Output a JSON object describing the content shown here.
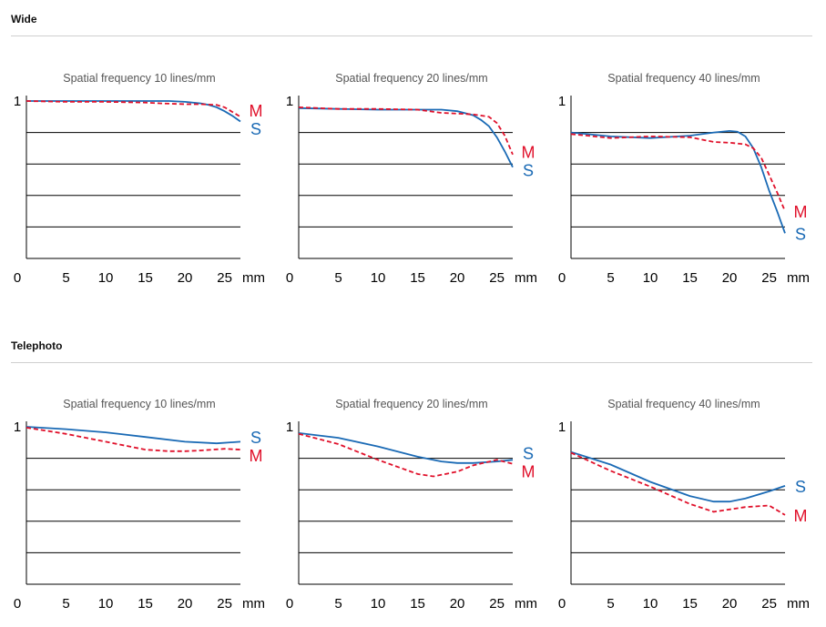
{
  "sections": [
    {
      "title": "Wide"
    },
    {
      "title": "Telephoto"
    }
  ],
  "colors": {
    "s_series": "#1a6ab5",
    "m_series": "#e0102a",
    "grid": "#000000",
    "subtitle": "#555555"
  },
  "chart_data": [
    {
      "type": "line",
      "section": "Wide",
      "title": "Spatial frequency 10 lines/mm",
      "xlabel": "mm",
      "xticks": [
        0,
        5,
        10,
        15,
        20,
        25
      ],
      "xlim": [
        0,
        27
      ],
      "ylabel": "",
      "yticks": [
        "1"
      ],
      "ylim": [
        0,
        1
      ],
      "grid_y": [
        0.2,
        0.4,
        0.6,
        0.8
      ],
      "series": [
        {
          "name": "S",
          "style": "solid",
          "x": [
            0,
            5,
            10,
            15,
            18,
            20,
            22,
            23,
            24,
            25,
            26,
            27
          ],
          "y": [
            1.0,
            1.0,
            1.0,
            1.0,
            1.0,
            0.995,
            0.985,
            0.975,
            0.96,
            0.935,
            0.905,
            0.87
          ]
        },
        {
          "name": "M",
          "style": "dashed",
          "x": [
            0,
            5,
            10,
            15,
            17,
            20,
            22,
            24,
            25,
            26,
            27
          ],
          "y": [
            1.0,
            0.995,
            0.995,
            0.99,
            0.985,
            0.98,
            0.98,
            0.975,
            0.96,
            0.93,
            0.9
          ]
        }
      ]
    },
    {
      "type": "line",
      "section": "Wide",
      "title": "Spatial frequency 20 lines/mm",
      "xlabel": "mm",
      "xticks": [
        0,
        5,
        10,
        15,
        20,
        25
      ],
      "xlim": [
        0,
        27
      ],
      "ylabel": "",
      "yticks": [
        "1"
      ],
      "ylim": [
        0,
        1
      ],
      "grid_y": [
        0.2,
        0.4,
        0.6,
        0.8
      ],
      "series": [
        {
          "name": "S",
          "style": "solid",
          "x": [
            0,
            5,
            10,
            15,
            18,
            20,
            22,
            23,
            24,
            25,
            26,
            27
          ],
          "y": [
            0.955,
            0.95,
            0.945,
            0.945,
            0.945,
            0.935,
            0.91,
            0.88,
            0.84,
            0.77,
            0.68,
            0.58
          ]
        },
        {
          "name": "M",
          "style": "dashed",
          "x": [
            0,
            5,
            10,
            15,
            18,
            20,
            22,
            24,
            25,
            26,
            27
          ],
          "y": [
            0.96,
            0.95,
            0.95,
            0.945,
            0.925,
            0.92,
            0.915,
            0.9,
            0.86,
            0.78,
            0.66
          ]
        }
      ]
    },
    {
      "type": "line",
      "section": "Wide",
      "title": "Spatial frequency 40 lines/mm",
      "xlabel": "mm",
      "xticks": [
        0,
        5,
        10,
        15,
        20,
        25
      ],
      "xlim": [
        0,
        27
      ],
      "ylabel": "",
      "yticks": [
        "1"
      ],
      "ylim": [
        0,
        1
      ],
      "grid_y": [
        0.2,
        0.4,
        0.6,
        0.8
      ],
      "series": [
        {
          "name": "S",
          "style": "solid",
          "x": [
            0,
            5,
            10,
            15,
            18,
            20,
            21,
            22,
            23,
            24,
            25,
            26,
            27
          ],
          "y": [
            0.8,
            0.775,
            0.765,
            0.78,
            0.8,
            0.81,
            0.805,
            0.775,
            0.7,
            0.58,
            0.43,
            0.3,
            0.16
          ]
        },
        {
          "name": "M",
          "style": "dashed",
          "x": [
            0,
            5,
            10,
            15,
            18,
            20,
            22,
            23,
            24,
            25,
            26,
            27
          ],
          "y": [
            0.79,
            0.765,
            0.775,
            0.77,
            0.74,
            0.735,
            0.725,
            0.7,
            0.64,
            0.53,
            0.42,
            0.3
          ]
        }
      ]
    },
    {
      "type": "line",
      "section": "Telephoto",
      "title": "Spatial frequency 10 lines/mm",
      "xlabel": "mm",
      "xticks": [
        0,
        5,
        10,
        15,
        20,
        25
      ],
      "xlim": [
        0,
        27
      ],
      "ylabel": "",
      "yticks": [
        "1"
      ],
      "ylim": [
        0,
        1
      ],
      "grid_y": [
        0.2,
        0.4,
        0.6,
        0.8
      ],
      "series": [
        {
          "name": "S",
          "style": "solid",
          "x": [
            0,
            5,
            10,
            15,
            20,
            24,
            27
          ],
          "y": [
            1.0,
            0.985,
            0.965,
            0.935,
            0.905,
            0.895,
            0.905
          ]
        },
        {
          "name": "M",
          "style": "dashed",
          "x": [
            0,
            5,
            10,
            15,
            18,
            20,
            22,
            25,
            27
          ],
          "y": [
            0.995,
            0.955,
            0.905,
            0.855,
            0.845,
            0.845,
            0.85,
            0.86,
            0.855
          ]
        }
      ]
    },
    {
      "type": "line",
      "section": "Telephoto",
      "title": "Spatial frequency 20 lines/mm",
      "xlabel": "mm",
      "xticks": [
        0,
        5,
        10,
        15,
        20,
        25
      ],
      "xlim": [
        0,
        27
      ],
      "ylabel": "",
      "yticks": [
        "1"
      ],
      "ylim": [
        0,
        1
      ],
      "grid_y": [
        0.2,
        0.4,
        0.6,
        0.8
      ],
      "series": [
        {
          "name": "S",
          "style": "solid",
          "x": [
            0,
            5,
            10,
            15,
            18,
            20,
            22,
            25,
            27
          ],
          "y": [
            0.96,
            0.93,
            0.875,
            0.81,
            0.78,
            0.77,
            0.77,
            0.78,
            0.79
          ]
        },
        {
          "name": "M",
          "style": "dashed",
          "x": [
            0,
            5,
            10,
            15,
            17,
            20,
            22,
            25,
            27
          ],
          "y": [
            0.955,
            0.89,
            0.79,
            0.7,
            0.685,
            0.715,
            0.755,
            0.79,
            0.765
          ]
        }
      ]
    },
    {
      "type": "line",
      "section": "Telephoto",
      "title": "Spatial frequency 40 lines/mm",
      "xlabel": "mm",
      "xticks": [
        0,
        5,
        10,
        15,
        20,
        25
      ],
      "xlim": [
        0,
        27
      ],
      "ylabel": "",
      "yticks": [
        "1"
      ],
      "ylim": [
        0,
        1
      ],
      "grid_y": [
        0.2,
        0.4,
        0.6,
        0.8
      ],
      "series": [
        {
          "name": "S",
          "style": "solid",
          "x": [
            0,
            5,
            10,
            15,
            18,
            20,
            22,
            25,
            27
          ],
          "y": [
            0.84,
            0.76,
            0.65,
            0.56,
            0.525,
            0.525,
            0.545,
            0.59,
            0.625
          ]
        },
        {
          "name": "M",
          "style": "dashed",
          "x": [
            0,
            5,
            10,
            15,
            18,
            20,
            22,
            25,
            27
          ],
          "y": [
            0.835,
            0.72,
            0.62,
            0.51,
            0.46,
            0.475,
            0.49,
            0.5,
            0.44
          ]
        }
      ]
    }
  ]
}
